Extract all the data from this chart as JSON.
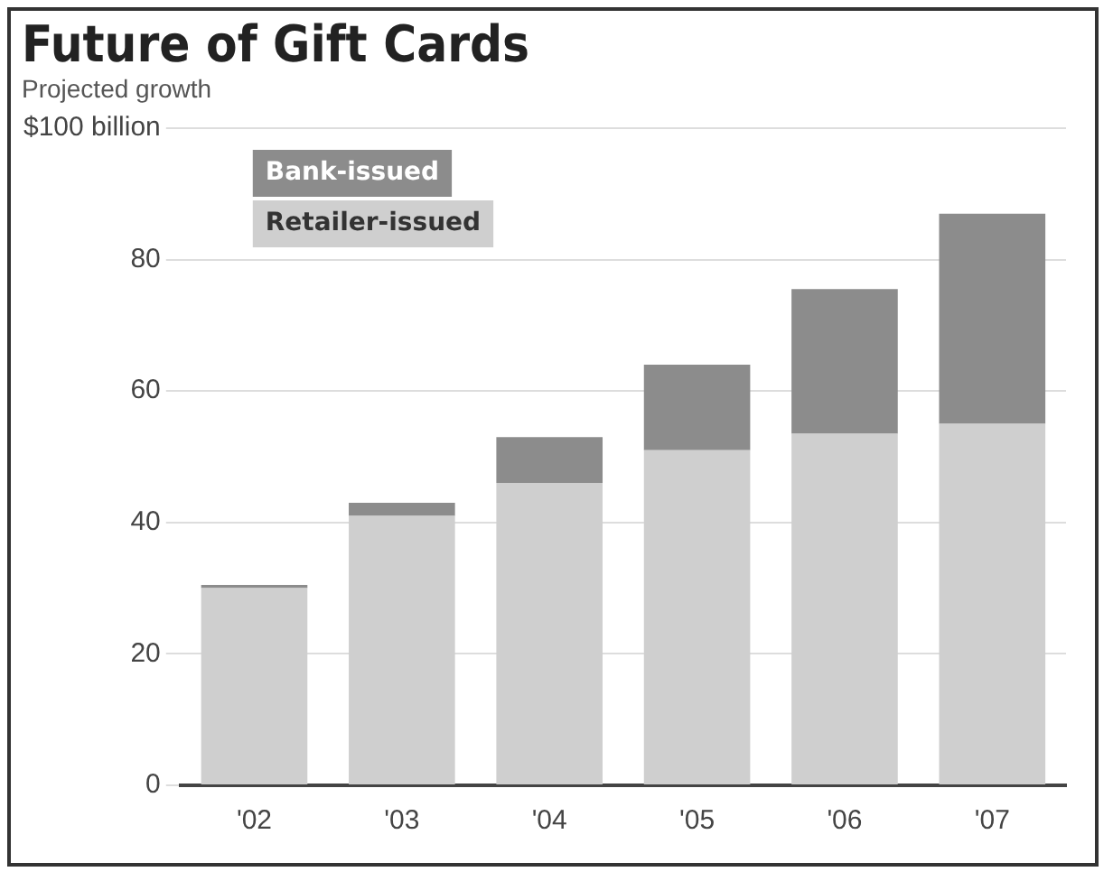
{
  "chart_data": {
    "type": "bar",
    "title": "Future of Gift Cards",
    "subtitle": "Projected growth",
    "categories": [
      "'02",
      "'03",
      "'04",
      "'05",
      "'06",
      "'07"
    ],
    "stacked": true,
    "series": [
      {
        "name": "Retailer-issued",
        "color": "#cfcfcf",
        "values": [
          30,
          41,
          46,
          51,
          53.5,
          55
        ]
      },
      {
        "name": "Bank-issued",
        "color": "#8c8c8c",
        "values": [
          0.5,
          2,
          7,
          13,
          22,
          32
        ]
      }
    ],
    "ylim": [
      0,
      100
    ],
    "yticks": [
      0,
      20,
      40,
      60,
      80,
      {
        "value": 100,
        "label": "$100 billion"
      }
    ],
    "grid": "y",
    "legend": "top left"
  }
}
